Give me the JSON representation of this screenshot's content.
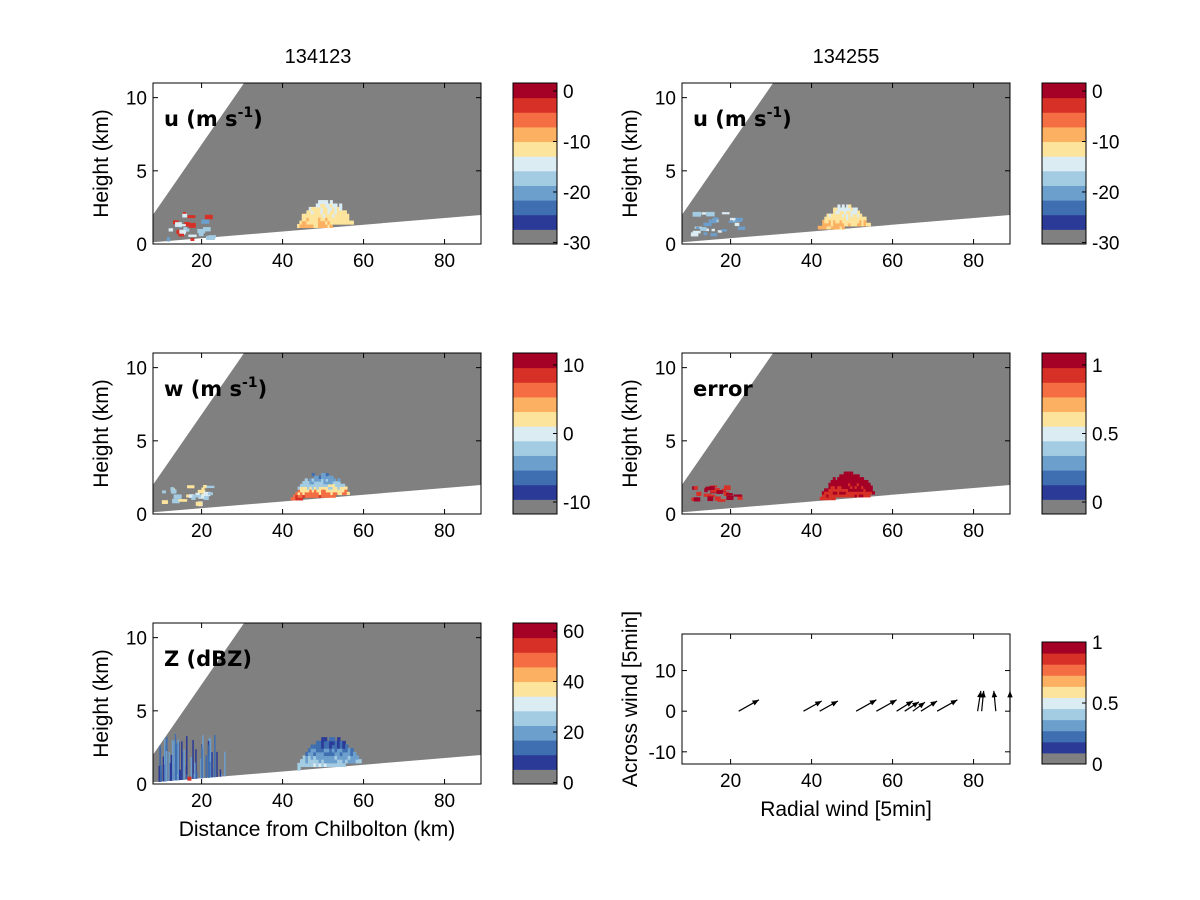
{
  "colormap": [
    "#808080",
    "#2b3a96",
    "#3f6fb0",
    "#6d9fcd",
    "#a3cce3",
    "#dcecf3",
    "#fde49c",
    "#fbb062",
    "#f46d43",
    "#d73027",
    "#a50026"
  ],
  "colors": {
    "gray": "#808080",
    "outside": "#ffffff",
    "axis": "#000000",
    "arrow": "#000000"
  },
  "column_titles": [
    "134123",
    "134255"
  ],
  "chart_data": [
    {
      "id": "u1",
      "type": "heatmap",
      "column_title": "134123",
      "label": "u (m s",
      "label_sup": "-1",
      "label_close": ")",
      "ylabel": "Height (km)",
      "xlabel": "",
      "xlim": [
        8,
        89
      ],
      "ylim": [
        0,
        11
      ],
      "xticks": [
        "20",
        "40",
        "60",
        "80"
      ],
      "yticks": [
        "0",
        "5",
        "10"
      ],
      "colorbar": {
        "ticks": [
          "0",
          "-10",
          "-20",
          "-30"
        ]
      },
      "features": [
        {
          "kind": "cell",
          "x": [
            43,
            58
          ],
          "y": [
            0.2,
            3.0
          ],
          "palette": [
            5,
            6,
            7
          ]
        },
        {
          "kind": "speckle",
          "x": [
            10,
            22
          ],
          "y": [
            0.3,
            2.2
          ],
          "palette": [
            3,
            4,
            5,
            9
          ]
        }
      ]
    },
    {
      "id": "u2",
      "type": "heatmap",
      "column_title": "134255",
      "label": "u (m s",
      "label_sup": "-1",
      "label_close": ")",
      "ylabel": "Height (km)",
      "xlabel": "",
      "xlim": [
        8,
        89
      ],
      "ylim": [
        0,
        11
      ],
      "xticks": [
        "20",
        "40",
        "60",
        "80"
      ],
      "yticks": [
        "0",
        "5",
        "10"
      ],
      "colorbar": {
        "ticks": [
          "0",
          "-10",
          "-20",
          "-30"
        ]
      },
      "features": [
        {
          "kind": "cell",
          "x": [
            41,
            55
          ],
          "y": [
            0.2,
            2.7
          ],
          "palette": [
            5,
            6,
            7
          ]
        },
        {
          "kind": "speckle",
          "x": [
            10,
            22
          ],
          "y": [
            0.3,
            2.2
          ],
          "palette": [
            3,
            4,
            5
          ]
        }
      ]
    },
    {
      "id": "w",
      "type": "heatmap",
      "label": "w (m s",
      "label_sup": "-1",
      "label_close": ")",
      "ylabel": "Height (km)",
      "xlabel": "",
      "xlim": [
        8,
        89
      ],
      "ylim": [
        0,
        11
      ],
      "xticks": [
        "20",
        "40",
        "60",
        "80"
      ],
      "yticks": [
        "0",
        "5",
        "10"
      ],
      "colorbar": {
        "ticks": [
          "10",
          "0",
          "-10"
        ]
      },
      "features": [
        {
          "kind": "cell",
          "x": [
            42,
            57
          ],
          "y": [
            0.6,
            2.8
          ],
          "palette": [
            2,
            3,
            4,
            6,
            8,
            9
          ]
        },
        {
          "kind": "speckle",
          "x": [
            10,
            22
          ],
          "y": [
            0.8,
            2.2
          ],
          "palette": [
            4,
            5,
            6
          ]
        }
      ]
    },
    {
      "id": "err",
      "type": "heatmap",
      "label": "error",
      "label_sup": "",
      "label_close": "",
      "ylabel": "Height (km)",
      "xlabel": "",
      "xlim": [
        8,
        89
      ],
      "ylim": [
        0,
        11
      ],
      "xticks": [
        "20",
        "40",
        "60",
        "80"
      ],
      "yticks": [
        "0",
        "5",
        "10"
      ],
      "colorbar": {
        "ticks": [
          "1",
          "0.5",
          "0"
        ]
      },
      "features": [
        {
          "kind": "cell",
          "x": [
            42,
            56
          ],
          "y": [
            0.6,
            2.9
          ],
          "palette": [
            10,
            10,
            9
          ]
        },
        {
          "kind": "speckle",
          "x": [
            10,
            22
          ],
          "y": [
            1.0,
            2.0
          ],
          "palette": [
            10,
            9
          ]
        }
      ]
    },
    {
      "id": "z",
      "type": "heatmap",
      "label": "Z (dBZ)",
      "label_sup": "",
      "label_close": "",
      "ylabel": "Height (km)",
      "xlabel": "Distance from Chilbolton (km)",
      "xlim": [
        8,
        89
      ],
      "ylim": [
        0,
        11
      ],
      "xticks": [
        "20",
        "40",
        "60",
        "80"
      ],
      "yticks": [
        "0",
        "5",
        "10"
      ],
      "colorbar": {
        "ticks": [
          "60",
          "40",
          "20",
          "0"
        ]
      },
      "features": [
        {
          "kind": "cell",
          "x": [
            43,
            60
          ],
          "y": [
            0.2,
            3.2
          ],
          "palette": [
            1,
            2,
            3,
            4,
            5
          ]
        },
        {
          "kind": "streaks",
          "x": [
            9,
            26
          ],
          "y": [
            0.0,
            3.5
          ],
          "palette": [
            1,
            2,
            3
          ]
        }
      ]
    },
    {
      "id": "wind",
      "type": "scatter",
      "label": "",
      "ylabel": "Across wind [5min]",
      "xlabel": "Radial wind [5min]",
      "xlim": [
        8,
        89
      ],
      "ylim": [
        -13,
        19
      ],
      "xticks": [
        "20",
        "40",
        "60",
        "80"
      ],
      "yticks": [
        "-10",
        "0",
        "10"
      ],
      "colorbar": {
        "ticks": [
          "1",
          "0.5",
          "0"
        ]
      },
      "arrows": [
        {
          "x": 22,
          "y": 0,
          "dx": 5,
          "dy": 2.8
        },
        {
          "x": 38,
          "y": 0,
          "dx": 4.5,
          "dy": 2.5
        },
        {
          "x": 42,
          "y": 0,
          "dx": 4.5,
          "dy": 2.5
        },
        {
          "x": 51,
          "y": 0,
          "dx": 5,
          "dy": 2.8
        },
        {
          "x": 56,
          "y": 0,
          "dx": 5,
          "dy": 2.8
        },
        {
          "x": 61,
          "y": 0,
          "dx": 4,
          "dy": 2.5
        },
        {
          "x": 63,
          "y": 0,
          "dx": 3.5,
          "dy": 2.3
        },
        {
          "x": 65,
          "y": 0,
          "dx": 3,
          "dy": 2.2
        },
        {
          "x": 67,
          "y": 0,
          "dx": 4,
          "dy": 2.5
        },
        {
          "x": 71,
          "y": 0,
          "dx": 5,
          "dy": 2.8
        },
        {
          "x": 81,
          "y": 0,
          "dx": 0.8,
          "dy": 5
        },
        {
          "x": 82,
          "y": 0,
          "dx": 0.5,
          "dy": 5
        },
        {
          "x": 85.5,
          "y": 0,
          "dx": -0.5,
          "dy": 5
        },
        {
          "x": 89,
          "y": 0,
          "dx": 0,
          "dy": 5
        }
      ]
    }
  ]
}
